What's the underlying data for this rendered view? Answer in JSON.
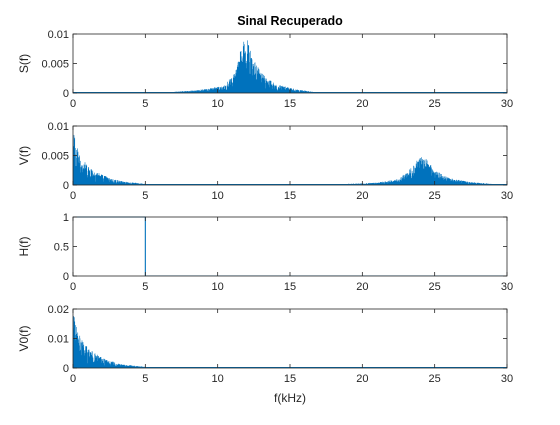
{
  "chart_data": [
    {
      "type": "line",
      "title": "Sinal Recuperado",
      "ylabel": "S(f)",
      "xlabel": "",
      "xlim": [
        0,
        30
      ],
      "ylim": [
        0,
        0.01
      ],
      "xticks": [
        0,
        5,
        10,
        15,
        20,
        25,
        30
      ],
      "xtick_labels": [
        "0",
        "5",
        "10",
        "15",
        "20",
        "25",
        "30"
      ],
      "yticks": [
        0,
        0.005,
        0.01
      ],
      "ytick_labels": [
        "0",
        "0.005",
        "0.01"
      ],
      "color": "#0072BD",
      "grid": false,
      "series": [
        {
          "kind": "spectrum",
          "bands": [
            {
              "x": [
                7.0,
                9.0,
                10.5,
                11.3,
                11.7,
                12.0,
                12.4,
                13.0,
                14.0,
                15.5,
                17.0
              ],
              "peak": [
                0.0002,
                0.0006,
                0.0013,
                0.004,
                0.0088,
                0.0095,
                0.0062,
                0.0034,
                0.0015,
                0.0006,
                0.0001
              ]
            }
          ]
        }
      ]
    },
    {
      "type": "line",
      "title": "",
      "ylabel": "V(f)",
      "xlabel": "",
      "xlim": [
        0,
        30
      ],
      "ylim": [
        0,
        0.01
      ],
      "xticks": [
        0,
        5,
        10,
        15,
        20,
        25,
        30
      ],
      "xtick_labels": [
        "0",
        "5",
        "10",
        "15",
        "20",
        "25",
        "30"
      ],
      "yticks": [
        0,
        0.005,
        0.01
      ],
      "ytick_labels": [
        "0",
        "0.005",
        "0.01"
      ],
      "color": "#0072BD",
      "grid": false,
      "series": [
        {
          "kind": "spectrum",
          "bands": [
            {
              "x": [
                0.0,
                0.3,
                0.8,
                1.5,
                2.5,
                3.5,
                5.0
              ],
              "peak": [
                0.0095,
                0.0065,
                0.004,
                0.0025,
                0.0012,
                0.0006,
                0.0002
              ]
            },
            {
              "x": [
                19.0,
                21.0,
                22.5,
                23.3,
                23.8,
                24.3,
                25.0,
                26.0,
                27.5,
                29.0
              ],
              "peak": [
                0.0002,
                0.0004,
                0.001,
                0.0028,
                0.0046,
                0.0048,
                0.0025,
                0.0012,
                0.0005,
                0.0002
              ]
            }
          ]
        }
      ]
    },
    {
      "type": "line",
      "title": "",
      "ylabel": "H(f)",
      "xlabel": "",
      "xlim": [
        0,
        30
      ],
      "ylim": [
        0,
        1
      ],
      "xticks": [
        0,
        5,
        10,
        15,
        20,
        25,
        30
      ],
      "xtick_labels": [
        "0",
        "5",
        "10",
        "15",
        "20",
        "25",
        "30"
      ],
      "yticks": [
        0,
        0.5,
        1
      ],
      "ytick_labels": [
        "0",
        "0.5",
        "1"
      ],
      "color": "#0072BD",
      "grid": false,
      "series": [
        {
          "kind": "line",
          "x": [
            0,
            5,
            5,
            30
          ],
          "y": [
            1,
            1,
            0,
            0
          ]
        }
      ]
    },
    {
      "type": "line",
      "title": "",
      "ylabel": "V0(f)",
      "xlabel": "f(kHz)",
      "xlim": [
        0,
        30
      ],
      "ylim": [
        0,
        0.02
      ],
      "xticks": [
        0,
        5,
        10,
        15,
        20,
        25,
        30
      ],
      "xtick_labels": [
        "0",
        "5",
        "10",
        "15",
        "20",
        "25",
        "30"
      ],
      "yticks": [
        0,
        0.01,
        0.02
      ],
      "ytick_labels": [
        "0",
        "0.01",
        "0.02"
      ],
      "color": "#0072BD",
      "grid": false,
      "series": [
        {
          "kind": "spectrum",
          "bands": [
            {
              "x": [
                0.0,
                0.3,
                0.8,
                1.5,
                2.5,
                3.5,
                5.0
              ],
              "peak": [
                0.019,
                0.013,
                0.008,
                0.005,
                0.0025,
                0.0012,
                0.0004
              ]
            }
          ]
        }
      ]
    }
  ]
}
